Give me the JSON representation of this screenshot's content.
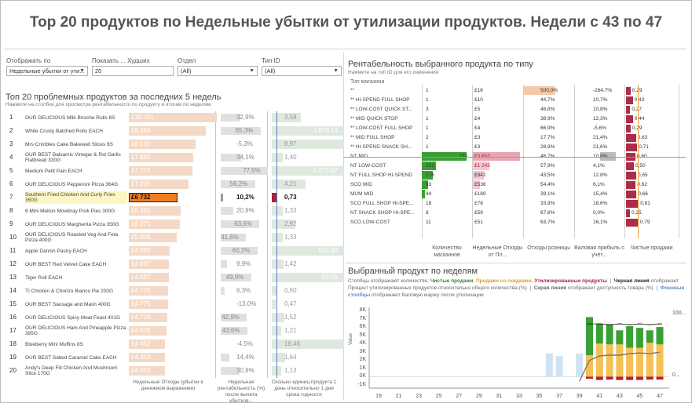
{
  "title": "Top 20 продуктов по Недельные убытки от утилизации продуктов. Недели с 43 по 47",
  "filters": [
    {
      "label": "Отображать по",
      "value": "Недельные убытки от ути...",
      "has_dropdown": true
    },
    {
      "label": "Показать ... Худших",
      "value": "20",
      "has_dropdown": false
    },
    {
      "label": "Отдел",
      "value": "(All)",
      "has_dropdown": true
    },
    {
      "label": "Тип ID",
      "value": "(All)",
      "has_dropdown": true
    }
  ],
  "left": {
    "title": "Топ 20 проблемных продуктов за последних 5 недель",
    "subtitle": "Нажмите на столбик для просмотра рентабельности по продукту и итогам по неделям.",
    "rows": [
      {
        "rank": "1",
        "name": "OUR DELICIOUS Milk Brioche Rolls 8S",
        "loss": "£10 761",
        "loss_v": 10761,
        "pct": "32,9%",
        "pct_v": 32.9,
        "units": "3,58",
        "units_v": 3.58
      },
      {
        "rank": "2",
        "name": "White Crusty Batched Rolls EACH",
        "loss": "£9 384",
        "loss_v": 9384,
        "pct": "65,3%",
        "pct_v": 65.3,
        "units": "1 878,14",
        "units_v": 1878.14
      },
      {
        "rank": "3",
        "name": "Mrs Crimbles Cake Bakewell Slices 6S",
        "loss": "£8 131",
        "loss_v": 8131,
        "pct": "-5,3%",
        "pct_v": -5.3,
        "units": "8,97",
        "units_v": 8.97
      },
      {
        "rank": "4",
        "name": "OUR BEST Balsamic Vinegar & Rst Garlic Flatbread 330G",
        "loss": "£7 842",
        "loss_v": 7842,
        "pct": "34,1%",
        "pct_v": 34.1,
        "units": "1,40",
        "units_v": 1.4
      },
      {
        "rank": "5",
        "name": "Medium Petit Pain EACH",
        "loss": "£7 774",
        "loss_v": 7774,
        "pct": "77,5%",
        "pct_v": 77.5,
        "units": "2 072,67",
        "units_v": 2072.67
      },
      {
        "rank": "6",
        "name": "OUR DELICIOUS Pepperoni Pizza 364G",
        "loss": "£7 305",
        "loss_v": 7305,
        "pct": "56,2%",
        "pct_v": 56.2,
        "units": "4,21",
        "units_v": 4.21
      },
      {
        "rank": "7",
        "name": "Southern Fried Chicken And Curly Fries 350G",
        "loss": "£6 732",
        "loss_v": 6732,
        "pct": "10,2%",
        "pct_v": 10.2,
        "units": "0,73",
        "units_v": 0.73,
        "selected": true
      },
      {
        "rank": "8",
        "name": "6 Mini Melton Mowbray Pork Pies 300G",
        "loss": "£6 301",
        "loss_v": 6301,
        "pct": "20,9%",
        "pct_v": 20.9,
        "units": "1,33",
        "units_v": 1.33
      },
      {
        "rank": "9",
        "name": "OUR DELICIOUS Margherita Pizza 350G",
        "loss": "£6 271",
        "loss_v": 6271,
        "pct": "63,6%",
        "pct_v": 63.6,
        "units": "2,92",
        "units_v": 2.92
      },
      {
        "rank": "10",
        "name": "OUR DELICIOUS Roasted Veg And Feta Pizza 400G",
        "loss": "£5 908",
        "loss_v": 5908,
        "pct": "41,6%",
        "pct_v": 41.6,
        "units": "1,33",
        "units_v": 1.33
      },
      {
        "rank": "11",
        "name": "Apple Danish Pastry EACH",
        "loss": "£4 965",
        "loss_v": 4965,
        "pct": "60,2%",
        "pct_v": 60.2,
        "units": "502,90",
        "units_v": 502.9
      },
      {
        "rank": "12",
        "name": "OUR BEST Red Velvet Cake EACH",
        "loss": "£4 897",
        "loss_v": 4897,
        "pct": "9,9%",
        "pct_v": 9.9,
        "units": "1,42",
        "units_v": 1.42
      },
      {
        "rank": "13",
        "name": "Tiger Roll EACH",
        "loss": "£4 887",
        "loss_v": 4887,
        "pct": "49,9%",
        "pct_v": 49.9,
        "units": "93,55",
        "units_v": 93.55
      },
      {
        "rank": "14",
        "name": "TI Chicken & Chorizo Bianco Pie 200G",
        "loss": "£4 776",
        "loss_v": 4776,
        "pct": "6,3%",
        "pct_v": 6.3,
        "units": "0,60",
        "units_v": 0.6
      },
      {
        "rank": "15",
        "name": "OUR BEST Sausage and Mash 400G",
        "loss": "£4 775",
        "loss_v": 4775,
        "pct": "-13,0%",
        "pct_v": -13.0,
        "units": "0,47",
        "units_v": 0.47
      },
      {
        "rank": "16",
        "name": "OUR DELICIOUS Spicy Meat Feast 401G",
        "loss": "£4 728",
        "loss_v": 4728,
        "pct": "42,9%",
        "pct_v": 42.9,
        "units": "1,52",
        "units_v": 1.52
      },
      {
        "rank": "17",
        "name": "OUR DELICIOUS Ham And Pineapple Pizza 395G",
        "loss": "£4 628",
        "loss_v": 4628,
        "pct": "43,6%",
        "pct_v": 43.6,
        "units": "1,21",
        "units_v": 1.21
      },
      {
        "rank": "18",
        "name": "Blueberry Mini Muffins 8S",
        "loss": "£4 462",
        "loss_v": 4462,
        "pct": "-4,5%",
        "pct_v": -4.5,
        "units": "18,46",
        "units_v": 18.46
      },
      {
        "rank": "19",
        "name": "OUR BEST Salted Caramel Cake EACH",
        "loss": "£4 453",
        "loss_v": 4453,
        "pct": "14,4%",
        "pct_v": 14.4,
        "units": "1,64",
        "units_v": 1.64
      },
      {
        "rank": "20",
        "name": "Andy's Deep Fill Chicken And Mushroom Slice 170G",
        "loss": "£4 453",
        "loss_v": 4453,
        "pct": "30,9%",
        "pct_v": 30.9,
        "units": "1,13",
        "units_v": 1.13
      }
    ],
    "footer": [
      "Недельные Отходы (убытки в денежном выражении)",
      "Недельная рентабельность (%) после вычета убытков...",
      "Сколько единиц продукта 1 день относительно 1 дня срока годности"
    ]
  },
  "right_table": {
    "title": "Рентабельность выбранного продукта по типу",
    "subtitle": "Нажмите на тип ID для его изменения",
    "header": "Тип магазина",
    "rows": [
      {
        "name": "**",
        "count": "1",
        "count_v": 1,
        "waste": "£16",
        "waste_v": 16,
        "waste_rate": "500,0%",
        "waste_rate_v": 500.0,
        "gross": "-264,7%",
        "gross_v": -264.7,
        "net": "0,29",
        "net_v": 0.29
      },
      {
        "name": "** HI-SPEND FULL SHOP",
        "count": "1",
        "count_v": 1,
        "waste": "£10",
        "waste_v": 10,
        "waste_rate": "44,7%",
        "waste_rate_v": 44.7,
        "gross": "10,7%",
        "gross_v": 10.7,
        "net": "0,43",
        "net_v": 0.43
      },
      {
        "name": "** LOW-COST QUICK ST...",
        "count": "3",
        "count_v": 3,
        "waste": "£5",
        "waste_v": 5,
        "waste_rate": "46,8%",
        "waste_rate_v": 46.8,
        "gross": "10,8%",
        "gross_v": 10.8,
        "net": "0,27",
        "net_v": 0.27
      },
      {
        "name": "** MID QUICK STOP",
        "count": "1",
        "count_v": 1,
        "waste": "£4",
        "waste_v": 4,
        "waste_rate": "38,9%",
        "waste_rate_v": 38.9,
        "gross": "12,3%",
        "gross_v": 12.3,
        "net": "0,44",
        "net_v": 0.44
      },
      {
        "name": "** LOW-COST FULL SHOP",
        "count": "1",
        "count_v": 1,
        "waste": "£4",
        "waste_v": 4,
        "waste_rate": "66,9%",
        "waste_rate_v": 66.9,
        "gross": "-5,6%",
        "gross_v": -5.6,
        "net": "0,29",
        "net_v": 0.29
      },
      {
        "name": "** MID FULL SHOP",
        "count": "2",
        "count_v": 2,
        "waste": "£3",
        "waste_v": 3,
        "waste_rate": "17,7%",
        "waste_rate_v": 17.7,
        "gross": "21,4%",
        "gross_v": 21.4,
        "net": "0,63",
        "net_v": 0.63
      },
      {
        "name": "** HI-SPEND SNACK SH...",
        "count": "1",
        "count_v": 1,
        "waste": "£3",
        "waste_v": 3,
        "waste_rate": "28,9%",
        "waste_rate_v": 28.9,
        "gross": "21,6%",
        "gross_v": 21.6,
        "net": "0,71",
        "net_v": 0.71
      },
      {
        "name": "NT MID",
        "count": "733",
        "count_v": 733,
        "waste": "£3 603",
        "waste_v": 3603,
        "waste_rate": "46,7%",
        "waste_rate_v": 46.7,
        "gross": "10,8%",
        "gross_v": 10.8,
        "net": "0,60",
        "net_v": 0.6
      },
      {
        "name": "NT LOW-COST",
        "count": "222",
        "count_v": 222,
        "waste": "£1 243",
        "waste_v": 1243,
        "waste_rate": "57,9%",
        "waste_rate_v": 57.9,
        "gross": "4,1%",
        "gross_v": 4.1,
        "net": "0,50",
        "net_v": 0.5
      },
      {
        "name": "NT FULL SHOP HI-SPEND",
        "count": "176",
        "count_v": 176,
        "waste": "£842",
        "waste_v": 842,
        "waste_rate": "43,5%",
        "waste_rate_v": 43.5,
        "gross": "12.8%",
        "gross_v": 12.8,
        "net": "0,65",
        "net_v": 0.65
      },
      {
        "name": "SCO MID",
        "count": "93",
        "count_v": 93,
        "waste": "£536",
        "waste_v": 536,
        "waste_rate": "54,4%",
        "waste_rate_v": 54.4,
        "gross": "6,1%",
        "gross_v": 6.1,
        "net": "0,62",
        "net_v": 0.62
      },
      {
        "name": "MUM MID",
        "count": "44",
        "count_v": 44,
        "waste": "£189",
        "waste_v": 189,
        "waste_rate": "39,1%",
        "waste_rate_v": 39.1,
        "gross": "15,4%",
        "gross_v": 15.4,
        "net": "0,66",
        "net_v": 0.66
      },
      {
        "name": "SCO FULL SHOP HI-SPE...",
        "count": "18",
        "count_v": 18,
        "waste": "£78",
        "waste_v": 78,
        "waste_rate": "33,9%",
        "waste_rate_v": 33.9,
        "gross": "18.6%",
        "gross_v": 18.6,
        "net": "0,81",
        "net_v": 0.81
      },
      {
        "name": "NT SNACK SHOP HI-SPE...",
        "count": "8",
        "count_v": 8,
        "waste": "£59",
        "waste_v": 59,
        "waste_rate": "67,8%",
        "waste_rate_v": 67.8,
        "gross": "0,0%",
        "gross_v": 0.0,
        "net": "0,25",
        "net_v": 0.25
      },
      {
        "name": "SCO LOW-COST",
        "count": "11",
        "count_v": 11,
        "waste": "£51",
        "waste_v": 51,
        "waste_rate": "63,7%",
        "waste_rate_v": 63.7,
        "gross": "16,1%",
        "gross_v": 16.1,
        "net": "0,79",
        "net_v": 0.79
      },
      {
        "name": "",
        "count": "",
        "count_v": 0,
        "waste": "",
        "waste_v": 0,
        "waste_rate": "",
        "waste_rate_v": 0,
        "gross": "",
        "gross_v": 0,
        "net": "",
        "net_v": 0
      }
    ],
    "footer": [
      "Количество магазинов",
      "Недельные Отходы от Пл...",
      "Отходы розницы",
      "Валовая прибыль с учёт...",
      "Чистые продажи"
    ]
  },
  "chart": {
    "title": "Выбранный продукт по неделям",
    "legend_line1_a": "Столбцы отображают количество: ",
    "legend_net": "Чистые продажи",
    "legend_promo": "Продажи со скидками",
    "legend_waste": "Утилизированные продукты",
    "legend_black": "Черная линия",
    "legend_line2_a": "отображает Процент утилизированных продуктов относительно общего количества (%)",
    "legend_grey": "Серая линия",
    "legend_line2_b": "отображает доступность",
    "legend_line3_a": "товара (%)",
    "legend_blue": "Фоновые столбцы",
    "legend_line3_b": "отображают Валовую маржу после утилизации",
    "ylabel": "Value",
    "colors": {
      "net": "#3aa035",
      "promo": "#f5c056",
      "waste": "#b2213c",
      "bg": "#cfe3f3",
      "black_line": "#222222",
      "grey_line": "#777777"
    }
  },
  "chart_data": {
    "type": "bar",
    "ylabel": "Value",
    "ylim": [
      -1000,
      8000
    ],
    "yticks": [
      "8K",
      "7K",
      "6K",
      "5K",
      "4K",
      "3K",
      "2K",
      "1K",
      "0K",
      "-1K"
    ],
    "right_ticks": [
      "100...",
      "0..."
    ],
    "x_labels": [
      "19",
      "21",
      "23",
      "25",
      "27",
      "29",
      "31",
      "33",
      "35",
      "37",
      "39",
      "41",
      "43",
      "45",
      "47"
    ],
    "weeks": [
      39,
      40,
      41,
      42,
      43,
      44,
      45,
      46,
      47
    ],
    "series": [
      {
        "name": "Чистые продажи",
        "values": [
          0,
          4600,
          2400,
          2400,
          1700,
          2600,
          2400,
          1500,
          2100
        ]
      },
      {
        "name": "Продажи со скидками",
        "values": [
          0,
          2600,
          4000,
          3900,
          3900,
          3500,
          3500,
          4100,
          3900
        ]
      },
      {
        "name": "Утилизированные продукты",
        "values": [
          0,
          -250,
          -400,
          -350,
          -400,
          -400,
          -400,
          -350,
          -350
        ]
      },
      {
        "name": "Фоновые столбцы",
        "values": [
          2800,
          2600,
          3300,
          3300,
          3500,
          3300,
          3300,
          3700,
          3500
        ]
      }
    ],
    "background_bars_before": {
      "weeks": [
        36,
        37
      ],
      "values": [
        2800,
        2500
      ]
    },
    "black_line": [
      null,
      0.82,
      0.82,
      0.81,
      0.82,
      0.81,
      0.82,
      0.81,
      0.82
    ],
    "grey_line": [
      0.05,
      0.33,
      0.39,
      0.4,
      0.4,
      0.42,
      0.43,
      0.42,
      0.44
    ]
  }
}
